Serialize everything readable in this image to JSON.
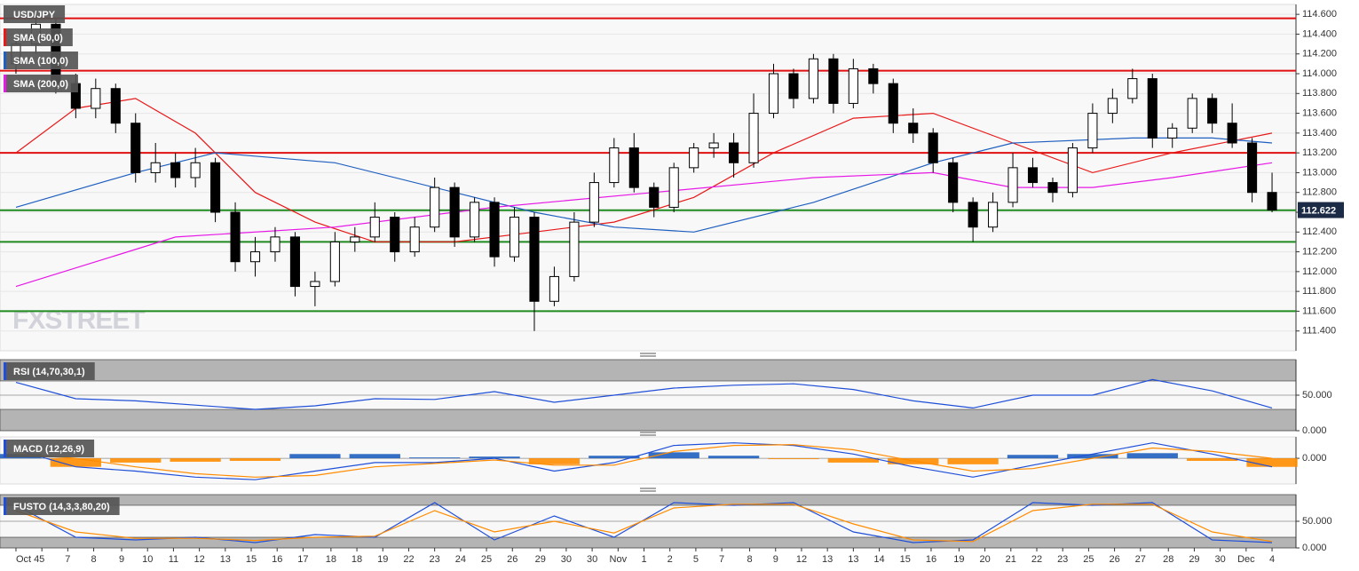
{
  "chart_data": [
    {
      "type": "candlestick",
      "title": "USD/JPY",
      "xlim": [
        -0.8,
        64.2
      ],
      "ylim": [
        111.2,
        114.7
      ],
      "yticks": [
        {
          "value": 111.4,
          "label": "111.400"
        },
        {
          "value": 111.6,
          "label": "111.600"
        },
        {
          "value": 111.8,
          "label": "111.800"
        },
        {
          "value": 112.0,
          "label": "112.000"
        },
        {
          "value": 112.2,
          "label": "112.200"
        },
        {
          "value": 112.4,
          "label": "112.400"
        },
        {
          "value": 112.6,
          "label": "112.600"
        },
        {
          "value": 112.8,
          "label": "112.800"
        },
        {
          "value": 113.0,
          "label": "113.000"
        },
        {
          "value": 113.2,
          "label": "113.200"
        },
        {
          "value": 113.4,
          "label": "113.400"
        },
        {
          "value": 113.6,
          "label": "113.600"
        },
        {
          "value": 113.8,
          "label": "113.800"
        },
        {
          "value": 114.0,
          "label": "114.000"
        },
        {
          "value": 114.2,
          "label": "114.200"
        },
        {
          "value": 114.4,
          "label": "114.400"
        },
        {
          "value": 114.6,
          "label": "114.600"
        }
      ],
      "grid": true,
      "up_color": "#ffffff",
      "down_color": "#000000",
      "watermark": "FXSTREET",
      "levels": [
        {
          "value": 114.56,
          "color": "#e01010"
        },
        {
          "value": 114.03,
          "color": "#e01010"
        },
        {
          "value": 113.2,
          "color": "#e01010"
        },
        {
          "value": 112.62,
          "color": "#1f8a1f"
        },
        {
          "value": 112.3,
          "color": "#1f8a1f"
        },
        {
          "value": 111.6,
          "color": "#1f8a1f"
        }
      ],
      "candles": [
        [
          114.1,
          114.4,
          114.0,
          114.3
        ],
        [
          114.3,
          114.6,
          114.2,
          114.5
        ],
        [
          114.5,
          114.55,
          113.8,
          113.9
        ],
        [
          113.9,
          114.0,
          113.55,
          113.65
        ],
        [
          113.65,
          113.95,
          113.55,
          113.85
        ],
        [
          113.85,
          113.9,
          113.4,
          113.5
        ],
        [
          113.5,
          113.6,
          112.9,
          113.0
        ],
        [
          113.0,
          113.3,
          112.9,
          113.1
        ],
        [
          113.1,
          113.2,
          112.85,
          112.95
        ],
        [
          112.95,
          113.25,
          112.85,
          113.1
        ],
        [
          113.1,
          113.15,
          112.5,
          112.6
        ],
        [
          112.6,
          112.7,
          112.0,
          112.1
        ],
        [
          112.1,
          112.35,
          111.95,
          112.2
        ],
        [
          112.2,
          112.45,
          112.1,
          112.35
        ],
        [
          112.35,
          112.4,
          111.75,
          111.85
        ],
        [
          111.85,
          112.0,
          111.65,
          111.9
        ],
        [
          111.9,
          112.4,
          111.85,
          112.3
        ],
        [
          112.3,
          112.45,
          112.2,
          112.35
        ],
        [
          112.35,
          112.7,
          112.3,
          112.55
        ],
        [
          112.55,
          112.6,
          112.1,
          112.2
        ],
        [
          112.2,
          112.55,
          112.15,
          112.45
        ],
        [
          112.45,
          112.95,
          112.4,
          112.85
        ],
        [
          112.85,
          112.9,
          112.25,
          112.35
        ],
        [
          112.35,
          112.75,
          112.3,
          112.7
        ],
        [
          112.7,
          112.75,
          112.05,
          112.15
        ],
        [
          112.15,
          112.65,
          112.1,
          112.55
        ],
        [
          112.55,
          112.6,
          111.4,
          111.7
        ],
        [
          111.7,
          112.05,
          111.65,
          111.95
        ],
        [
          111.95,
          112.6,
          111.9,
          112.5
        ],
        [
          112.5,
          113.0,
          112.45,
          112.9
        ],
        [
          112.9,
          113.35,
          112.85,
          113.25
        ],
        [
          113.25,
          113.4,
          112.8,
          112.85
        ],
        [
          112.85,
          112.9,
          112.55,
          112.65
        ],
        [
          112.65,
          113.1,
          112.6,
          113.05
        ],
        [
          113.05,
          113.3,
          113.0,
          113.25
        ],
        [
          113.25,
          113.4,
          113.15,
          113.3
        ],
        [
          113.3,
          113.4,
          112.95,
          113.1
        ],
        [
          113.1,
          113.8,
          113.05,
          113.6
        ],
        [
          113.6,
          114.1,
          113.55,
          114.0
        ],
        [
          114.0,
          114.05,
          113.65,
          113.75
        ],
        [
          113.75,
          114.2,
          113.7,
          114.15
        ],
        [
          114.15,
          114.2,
          113.6,
          113.7
        ],
        [
          113.7,
          114.15,
          113.65,
          114.05
        ],
        [
          114.05,
          114.1,
          113.8,
          113.9
        ],
        [
          113.9,
          113.95,
          113.4,
          113.5
        ],
        [
          113.5,
          113.65,
          113.3,
          113.4
        ],
        [
          113.4,
          113.45,
          113.0,
          113.1
        ],
        [
          113.1,
          113.15,
          112.6,
          112.7
        ],
        [
          112.7,
          112.75,
          112.3,
          112.45
        ],
        [
          112.45,
          112.8,
          112.4,
          112.7
        ],
        [
          112.7,
          113.2,
          112.65,
          113.05
        ],
        [
          113.05,
          113.15,
          112.85,
          112.9
        ],
        [
          112.9,
          112.95,
          112.7,
          112.8
        ],
        [
          112.8,
          113.3,
          112.75,
          113.25
        ],
        [
          113.25,
          113.7,
          113.2,
          113.6
        ],
        [
          113.6,
          113.85,
          113.5,
          113.75
        ],
        [
          113.75,
          114.05,
          113.7,
          113.95
        ],
        [
          113.95,
          114.0,
          113.25,
          113.35
        ],
        [
          113.35,
          113.5,
          113.25,
          113.45
        ],
        [
          113.45,
          113.8,
          113.4,
          113.75
        ],
        [
          113.75,
          113.8,
          113.4,
          113.5
        ],
        [
          113.5,
          113.7,
          113.25,
          113.3
        ],
        [
          113.3,
          113.35,
          112.7,
          112.8
        ],
        [
          112.8,
          113.0,
          112.6,
          112.622
        ]
      ],
      "series": [
        {
          "name": "SMA (50,0)",
          "color": "#e8191a",
          "x": [
            0,
            3,
            6,
            9,
            12,
            15,
            18,
            22,
            26,
            30,
            34,
            38,
            42,
            46,
            50,
            54,
            58,
            63
          ],
          "values": [
            113.2,
            113.65,
            113.75,
            113.4,
            112.8,
            112.5,
            112.3,
            112.3,
            112.4,
            112.5,
            112.75,
            113.2,
            113.55,
            113.6,
            113.3,
            113.0,
            113.2,
            113.4
          ]
        },
        {
          "name": "SMA (100,0)",
          "color": "#1f5fbf",
          "x": [
            0,
            6,
            10,
            16,
            22,
            26,
            30,
            34,
            40,
            46,
            50,
            56,
            60,
            63
          ],
          "values": [
            112.65,
            113.0,
            113.2,
            113.1,
            112.8,
            112.6,
            112.45,
            112.4,
            112.7,
            113.1,
            113.3,
            113.35,
            113.35,
            113.3
          ]
        },
        {
          "name": "SMA (200,0)",
          "color": "#e619e6",
          "x": [
            0,
            8,
            16,
            24,
            32,
            40,
            46,
            50,
            54,
            58,
            63
          ],
          "values": [
            111.85,
            112.35,
            112.45,
            112.65,
            112.8,
            112.95,
            113.0,
            112.85,
            112.85,
            112.95,
            113.1
          ]
        }
      ]
    },
    {
      "type": "line",
      "title": "RSI (14,70,30,1)",
      "xlim": [
        -0.8,
        64.2
      ],
      "ylim": [
        0,
        100
      ],
      "yticks": [
        {
          "value": 0,
          "label": "0.000"
        },
        {
          "value": 50,
          "label": "50.000"
        }
      ],
      "levels": [
        30,
        70
      ],
      "series": [
        {
          "color": "#1f4fd8",
          "x": [
            0,
            3,
            6,
            9,
            12,
            15,
            18,
            21,
            24,
            27,
            30,
            33,
            36,
            39,
            42,
            45,
            48,
            51,
            54,
            57,
            60,
            63
          ],
          "values": [
            68,
            45,
            42,
            36,
            30,
            35,
            45,
            44,
            55,
            40,
            50,
            60,
            64,
            66,
            58,
            42,
            32,
            50,
            50,
            72,
            56,
            32
          ]
        }
      ]
    },
    {
      "type": "line",
      "title": "MACD (12,26,9)",
      "xlim": [
        -0.8,
        64.2
      ],
      "ylim": [
        -0.3,
        0.25
      ],
      "yticks": [
        {
          "value": 0,
          "label": "0.000"
        }
      ],
      "series": [
        {
          "style": "bar",
          "color": "#1f5fbf",
          "negative_color": "#ff8c00",
          "x": [
            0,
            3,
            6,
            9,
            12,
            15,
            18,
            21,
            24,
            27,
            30,
            33,
            36,
            39,
            42,
            45,
            48,
            51,
            54,
            57,
            60,
            63
          ],
          "values": [
            0.05,
            -0.1,
            -0.05,
            -0.04,
            -0.03,
            0.05,
            0.05,
            0.01,
            0.02,
            -0.07,
            0.03,
            0.07,
            0.03,
            -0.01,
            -0.05,
            -0.07,
            -0.07,
            0.04,
            0.05,
            0.06,
            -0.03,
            -0.1
          ]
        },
        {
          "color": "#1f4fd8",
          "x": [
            0,
            3,
            6,
            9,
            12,
            15,
            18,
            21,
            24,
            27,
            30,
            33,
            36,
            39,
            42,
            45,
            48,
            51,
            54,
            57,
            60,
            63
          ],
          "values": [
            0.1,
            -0.1,
            -0.15,
            -0.22,
            -0.25,
            -0.15,
            -0.05,
            -0.05,
            0.0,
            -0.15,
            -0.05,
            0.15,
            0.18,
            0.15,
            0.05,
            -0.1,
            -0.22,
            -0.08,
            0.05,
            0.18,
            0.05,
            -0.1
          ]
        },
        {
          "color": "#ff8c00",
          "x": [
            0,
            3,
            6,
            9,
            12,
            15,
            18,
            21,
            24,
            27,
            30,
            33,
            36,
            39,
            42,
            45,
            48,
            51,
            54,
            57,
            60,
            63
          ],
          "values": [
            0.05,
            0.0,
            -0.1,
            -0.18,
            -0.22,
            -0.2,
            -0.1,
            -0.06,
            -0.02,
            -0.08,
            -0.08,
            0.08,
            0.15,
            0.16,
            0.1,
            -0.03,
            -0.15,
            -0.12,
            0.0,
            0.12,
            0.08,
            0.0
          ]
        }
      ]
    },
    {
      "type": "line",
      "title": "FUSTO (14,3,3,80,20)",
      "xlim": [
        -0.8,
        64.2
      ],
      "ylim": [
        0,
        100
      ],
      "yticks": [
        {
          "value": 0,
          "label": "0.000"
        },
        {
          "value": 50,
          "label": "50.000"
        }
      ],
      "levels": [
        20,
        80
      ],
      "xticks": [
        {
          "value": 0,
          "label": "Oct 4"
        },
        {
          "value": 1.3,
          "label": "5"
        },
        {
          "value": 2.6,
          "label": "7"
        },
        {
          "value": 3.9,
          "label": "8"
        },
        {
          "value": 5.3,
          "label": "9"
        },
        {
          "value": 6.6,
          "label": "10"
        },
        {
          "value": 7.9,
          "label": "11"
        },
        {
          "value": 9.2,
          "label": "12"
        },
        {
          "value": 10.5,
          "label": "13"
        },
        {
          "value": 11.8,
          "label": "15"
        },
        {
          "value": 13.1,
          "label": "16"
        },
        {
          "value": 14.4,
          "label": "17"
        },
        {
          "value": 15.8,
          "label": "18"
        },
        {
          "value": 17.1,
          "label": "18"
        },
        {
          "value": 18.4,
          "label": "19"
        },
        {
          "value": 19.7,
          "label": "22"
        },
        {
          "value": 21,
          "label": "23"
        },
        {
          "value": 22.3,
          "label": "24"
        },
        {
          "value": 23.6,
          "label": "25"
        },
        {
          "value": 24.9,
          "label": "26"
        },
        {
          "value": 26.3,
          "label": "29"
        },
        {
          "value": 27.6,
          "label": "30"
        },
        {
          "value": 28.9,
          "label": "30"
        },
        {
          "value": 30.2,
          "label": "Nov"
        },
        {
          "value": 31.5,
          "label": "1"
        },
        {
          "value": 32.8,
          "label": "2"
        },
        {
          "value": 34.1,
          "label": "5"
        },
        {
          "value": 35.4,
          "label": "7"
        },
        {
          "value": 36.8,
          "label": "8"
        },
        {
          "value": 38.1,
          "label": "9"
        },
        {
          "value": 39.4,
          "label": "12"
        },
        {
          "value": 40.7,
          "label": "13"
        },
        {
          "value": 42,
          "label": "13"
        },
        {
          "value": 43.3,
          "label": "14"
        },
        {
          "value": 44.6,
          "label": "15"
        },
        {
          "value": 45.9,
          "label": "16"
        },
        {
          "value": 47.3,
          "label": "19"
        },
        {
          "value": 48.6,
          "label": "20"
        },
        {
          "value": 49.9,
          "label": "21"
        },
        {
          "value": 51.2,
          "label": "22"
        },
        {
          "value": 52.5,
          "label": "23"
        },
        {
          "value": 53.8,
          "label": "25"
        },
        {
          "value": 55.1,
          "label": "26"
        },
        {
          "value": 56.4,
          "label": "27"
        },
        {
          "value": 57.8,
          "label": "28"
        },
        {
          "value": 59.1,
          "label": "29"
        },
        {
          "value": 60.4,
          "label": "30"
        },
        {
          "value": 61.7,
          "label": "Dec"
        },
        {
          "value": 63,
          "label": "4"
        }
      ],
      "series": [
        {
          "color": "#1f4fd8",
          "x": [
            0,
            3,
            6,
            9,
            12,
            15,
            18,
            21,
            24,
            27,
            30,
            33,
            36,
            39,
            42,
            45,
            48,
            51,
            54,
            57,
            60,
            63
          ],
          "values": [
            80,
            20,
            15,
            20,
            10,
            25,
            20,
            85,
            15,
            60,
            20,
            85,
            80,
            85,
            30,
            10,
            15,
            85,
            80,
            85,
            15,
            10
          ]
        },
        {
          "color": "#ff8c00",
          "x": [
            0,
            3,
            6,
            9,
            12,
            15,
            18,
            21,
            24,
            27,
            30,
            33,
            36,
            39,
            42,
            45,
            48,
            51,
            54,
            57,
            60,
            63
          ],
          "values": [
            70,
            30,
            18,
            18,
            14,
            20,
            22,
            70,
            30,
            50,
            28,
            75,
            82,
            82,
            45,
            15,
            12,
            70,
            82,
            82,
            30,
            12
          ]
        }
      ]
    }
  ]
}
